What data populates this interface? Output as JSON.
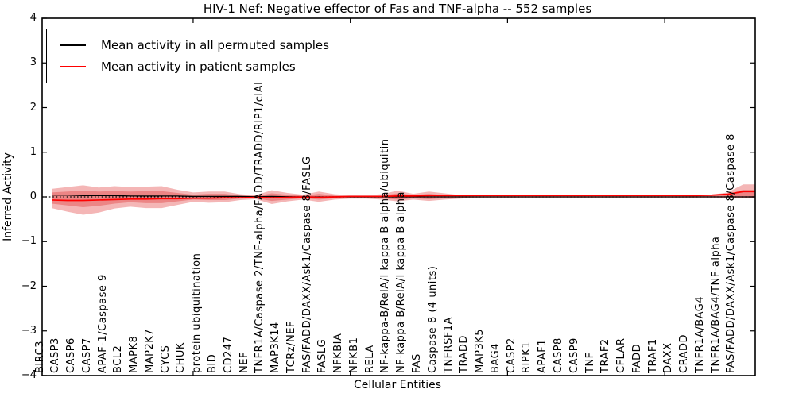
{
  "title": "HIV-1 Nef: Negative effector of Fas and TNF-alpha -- 552 samples",
  "axes": {
    "ylabel": "Inferred Activity",
    "xlabel": "Cellular Entities",
    "ytick_labels": [
      "4",
      "3",
      "2",
      "1",
      "0",
      "−1",
      "−2",
      "−3",
      "−4"
    ]
  },
  "legend": {
    "entries": [
      {
        "label": "Mean activity in all permuted samples",
        "color": "#000000"
      },
      {
        "label": "Mean activity in patient samples",
        "color": "#ff0000"
      }
    ]
  },
  "colors": {
    "frame": "#000000",
    "permuted_line": "#000000",
    "patient_line": "#ff0000",
    "band_fill": "#dd2020",
    "zero_line": "#000000",
    "background": "#ffffff"
  },
  "chart_data": {
    "type": "line",
    "title": "HIV-1 Nef: Negative effector of Fas and TNF-alpha -- 552 samples",
    "xlabel": "Cellular Entities",
    "ylabel": "Inferred Activity",
    "ylim": [
      -4,
      4
    ],
    "yticks": [
      4,
      3,
      2,
      1,
      0,
      -1,
      -2,
      -3,
      -4
    ],
    "xtick_indices": [
      9,
      19,
      29,
      39
    ],
    "grid": false,
    "legend_position": "upper left",
    "zero_line": {
      "y": 0,
      "style": "dotted",
      "color": "#000000"
    },
    "categories": [
      "BIRC3",
      "CASP3",
      "CASP6",
      "CASP7",
      "APAF-1/Caspase 9",
      "BCL2",
      "MAPK8",
      "MAP2K7",
      "CYCS",
      "CHUK",
      "protein ubiquitination",
      "BID",
      "CD247",
      "NEF",
      "TNFR1A/Caspase 2/TNF-alpha/FADD/TRADD/RIP1/cIAP",
      "MAP3K14",
      "TCRz/NEF",
      "FAS/FADD/DAXX/Ask1/Caspase 8/FASLG",
      "FASLG",
      "NFKBIA",
      "NFKB1",
      "RELA",
      "NF-kappa-B/RelA/I kappa B alpha/ubiquitin",
      "NF-kappa-B/RelA/I kappa B alpha",
      "FAS",
      "Caspase 8 (4 units)",
      "TNFRSF1A",
      "TRADD",
      "MAP3K5",
      "BAG4",
      "CASP2",
      "RIPK1",
      "APAF1",
      "CASP8",
      "CASP9",
      "TNF",
      "TRAF2",
      "CFLAR",
      "FADD",
      "TRAF1",
      "DAXX",
      "CRADD",
      "TNFR1A/BAG4",
      "TNFR1A/BAG4/TNF-alpha",
      "FAS/FADD/DAXX/Ask1/Caspase 8/Caspase 8"
    ],
    "series": [
      {
        "name": "Mean activity in all permuted samples",
        "color": "#000000",
        "values": [
          0.04,
          0.04,
          0.03,
          0.03,
          0.03,
          0.02,
          0.02,
          0.02,
          0.02,
          0.01,
          0.01,
          0.01,
          0.01,
          0.005,
          0.01,
          0.005,
          0,
          0,
          0,
          0,
          0,
          0,
          0,
          0,
          0,
          0,
          0,
          0,
          0,
          0,
          0,
          0,
          0,
          0,
          0,
          0,
          0,
          0,
          0,
          0,
          0,
          0,
          0,
          0,
          0
        ]
      },
      {
        "name": "Mean activity in patient samples",
        "color": "#ff0000",
        "values": [
          -0.07,
          -0.08,
          -0.08,
          -0.07,
          -0.06,
          -0.05,
          -0.05,
          -0.04,
          -0.04,
          -0.03,
          -0.03,
          -0.02,
          -0.02,
          -0.01,
          -0.02,
          -0.01,
          0,
          -0.01,
          0,
          0.01,
          0.01,
          0.01,
          0.02,
          0.02,
          0.03,
          0.03,
          0.03,
          0.03,
          0.03,
          0.03,
          0.03,
          0.03,
          0.03,
          0.03,
          0.03,
          0.03,
          0.03,
          0.03,
          0.03,
          0.03,
          0.03,
          0.03,
          0.04,
          0.06,
          0.12
        ]
      }
    ],
    "band": {
      "name": "patient activity spread",
      "color": "#dd2020",
      "outer_top": [
        0.18,
        0.22,
        0.26,
        0.21,
        0.24,
        0.22,
        0.23,
        0.24,
        0.16,
        0.1,
        0.12,
        0.12,
        0.06,
        0.04,
        0.15,
        0.09,
        0.05,
        0.12,
        0.06,
        0.04,
        0.04,
        0.06,
        0.14,
        0.07,
        0.12,
        0.08,
        0.04,
        0.02,
        0.02,
        0.02,
        0.02,
        0.02,
        0.02,
        0.02,
        0.02,
        0.02,
        0.02,
        0.02,
        0.02,
        0.02,
        0.02,
        0.03,
        0.05,
        0.1,
        0.28
      ],
      "outer_bottom": [
        -0.25,
        -0.33,
        -0.4,
        -0.35,
        -0.26,
        -0.22,
        -0.25,
        -0.25,
        -0.18,
        -0.11,
        -0.13,
        -0.12,
        -0.07,
        -0.05,
        -0.16,
        -0.1,
        -0.06,
        -0.11,
        -0.06,
        -0.04,
        -0.04,
        -0.06,
        -0.1,
        -0.06,
        -0.09,
        -0.06,
        -0.04,
        -0.02,
        -0.02,
        -0.02,
        -0.02,
        -0.02,
        -0.02,
        -0.02,
        -0.02,
        -0.02,
        -0.02,
        -0.02,
        -0.02,
        -0.02,
        -0.02,
        -0.02,
        -0.02,
        -0.02,
        -0.03
      ],
      "inner_top": [
        0.1,
        0.12,
        0.14,
        0.12,
        0.13,
        0.12,
        0.13,
        0.13,
        0.09,
        0.05,
        0.07,
        0.07,
        0.03,
        0.02,
        0.08,
        0.05,
        0.03,
        0.07,
        0.03,
        0.02,
        0.02,
        0.03,
        0.08,
        0.04,
        0.07,
        0.04,
        0.02,
        0.01,
        0.01,
        0.01,
        0.01,
        0.01,
        0.01,
        0.01,
        0.01,
        0.01,
        0.01,
        0.01,
        0.01,
        0.01,
        0.01,
        0.02,
        0.03,
        0.06,
        0.16
      ],
      "inner_bottom": [
        -0.15,
        -0.19,
        -0.23,
        -0.2,
        -0.15,
        -0.12,
        -0.14,
        -0.14,
        -0.1,
        -0.06,
        -0.07,
        -0.07,
        -0.04,
        -0.03,
        -0.09,
        -0.06,
        -0.03,
        -0.06,
        -0.03,
        -0.02,
        -0.02,
        -0.03,
        -0.06,
        -0.03,
        -0.05,
        -0.03,
        -0.02,
        -0.01,
        -0.01,
        -0.01,
        -0.01,
        -0.01,
        -0.01,
        -0.01,
        -0.01,
        -0.01,
        -0.01,
        -0.01,
        -0.01,
        -0.01,
        -0.01,
        -0.01,
        -0.01,
        -0.01,
        -0.02
      ]
    }
  }
}
